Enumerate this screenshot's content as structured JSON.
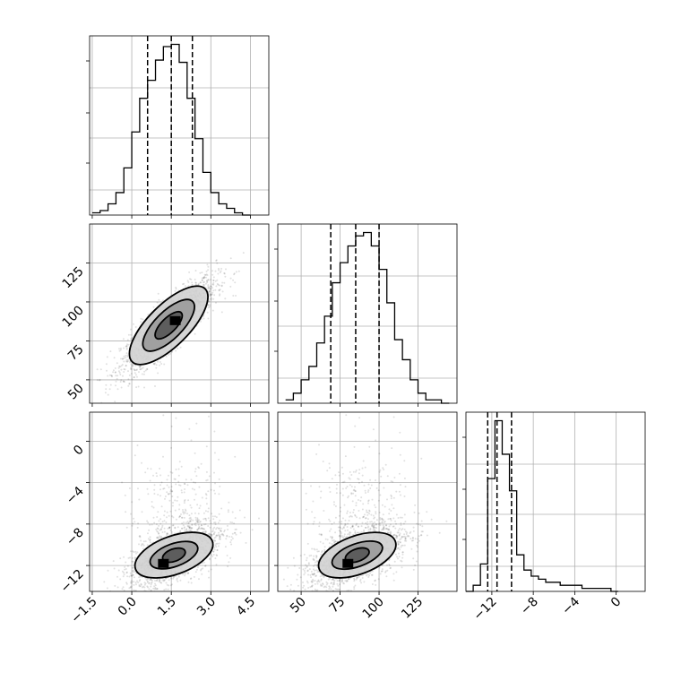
{
  "chart_data": {
    "type": "corner",
    "variables": [
      {
        "id": "p0",
        "range": [
          -1.6,
          5.2
        ],
        "ticks": [
          -1.5,
          0.0,
          1.5,
          3.0,
          4.5
        ],
        "tick_labels": [
          "−1.5",
          "0.0",
          "1.5",
          "3.0",
          "4.5"
        ],
        "quantiles": [
          0.6,
          1.5,
          2.3
        ],
        "hist": {
          "edges": [
            -1.5,
            -1.2,
            -0.9,
            -0.6,
            -0.3,
            0.0,
            0.3,
            0.6,
            0.9,
            1.2,
            1.5,
            1.8,
            2.1,
            2.4,
            2.7,
            3.0,
            3.3,
            3.6,
            3.9,
            4.2,
            4.5
          ],
          "counts": [
            1,
            2,
            5,
            10,
            21,
            37,
            52,
            60,
            69,
            75,
            76,
            68,
            52,
            34,
            19,
            10,
            5,
            3,
            1,
            0
          ]
        }
      },
      {
        "id": "p1",
        "range": [
          35,
          150
        ],
        "ticks": [
          50,
          75,
          100,
          125
        ],
        "tick_labels": [
          "50",
          "75",
          "100",
          "125"
        ],
        "quantiles": [
          69,
          85,
          100
        ],
        "hist": {
          "edges": [
            40,
            45,
            50,
            55,
            60,
            65,
            70,
            75,
            80,
            85,
            90,
            95,
            100,
            105,
            110,
            115,
            120,
            125,
            130,
            135,
            140,
            145
          ],
          "counts": [
            1,
            3,
            7,
            11,
            18,
            26,
            36,
            42,
            47,
            50,
            51,
            47,
            40,
            30,
            19,
            13,
            7,
            3,
            1,
            1,
            0
          ]
        }
      },
      {
        "id": "p2",
        "range": [
          -14.5,
          2.8
        ],
        "ticks": [
          -12,
          -8,
          -4,
          0
        ],
        "tick_labels": [
          "−12",
          "−8",
          "−4",
          "0"
        ],
        "quantiles": [
          -12.4,
          -11.5,
          -10.1
        ],
        "hist": {
          "edges": [
            -14.5,
            -13.8,
            -13.1,
            -12.4,
            -11.7,
            -11.0,
            -10.3,
            -9.6,
            -8.9,
            -8.2,
            -7.5,
            -6.8,
            -6.1,
            -5.4,
            -4.7,
            -4.0,
            -3.3,
            -2.6,
            -1.9,
            -1.2,
            -0.5,
            0.2
          ],
          "counts": [
            0,
            2,
            9,
            37,
            56,
            45,
            33,
            12,
            7,
            5,
            4,
            3,
            3,
            2,
            2,
            2,
            1,
            1,
            1,
            1,
            0
          ]
        }
      }
    ],
    "scatter_panels": [
      {
        "x": "p0",
        "y": "p1",
        "mean": [
          1.4,
          85
        ],
        "sd": [
          0.9,
          15
        ],
        "corr": 0.85,
        "density_peak": [
          1.65,
          88
        ],
        "contours": [
          {
            "rx": 0.5,
            "ry": 8.5,
            "gray": "#555555"
          },
          {
            "rx": 0.95,
            "ry": 16,
            "gray": "#9a9a9a"
          },
          {
            "rx": 1.45,
            "ry": 24,
            "gray": "#d2d2d2"
          }
        ]
      },
      {
        "x": "p0",
        "y": "p2",
        "mean": [
          1.6,
          -11.0
        ],
        "sd": [
          0.9,
          1.6
        ],
        "corr": 0.6,
        "density_peak": [
          1.2,
          -11.8
        ],
        "contours": [
          {
            "rx": 0.45,
            "ry": 0.6,
            "gray": "#555555"
          },
          {
            "rx": 0.95,
            "ry": 1.1,
            "gray": "#9a9a9a"
          },
          {
            "rx": 1.55,
            "ry": 1.85,
            "gray": "#d2d2d2"
          }
        ]
      },
      {
        "x": "p1",
        "y": "p2",
        "mean": [
          86,
          -11.0
        ],
        "sd": [
          16,
          1.6
        ],
        "corr": 0.55,
        "density_peak": [
          80,
          -11.8
        ],
        "contours": [
          {
            "rx": 8,
            "ry": 0.6,
            "gray": "#555555"
          },
          {
            "rx": 17,
            "ry": 1.1,
            "gray": "#9a9a9a"
          },
          {
            "rx": 26,
            "ry": 1.85,
            "gray": "#d2d2d2"
          }
        ]
      }
    ],
    "grid": true,
    "colors": {
      "line": "#000000",
      "points": "#000000",
      "grid": "#b0b0b0"
    }
  }
}
